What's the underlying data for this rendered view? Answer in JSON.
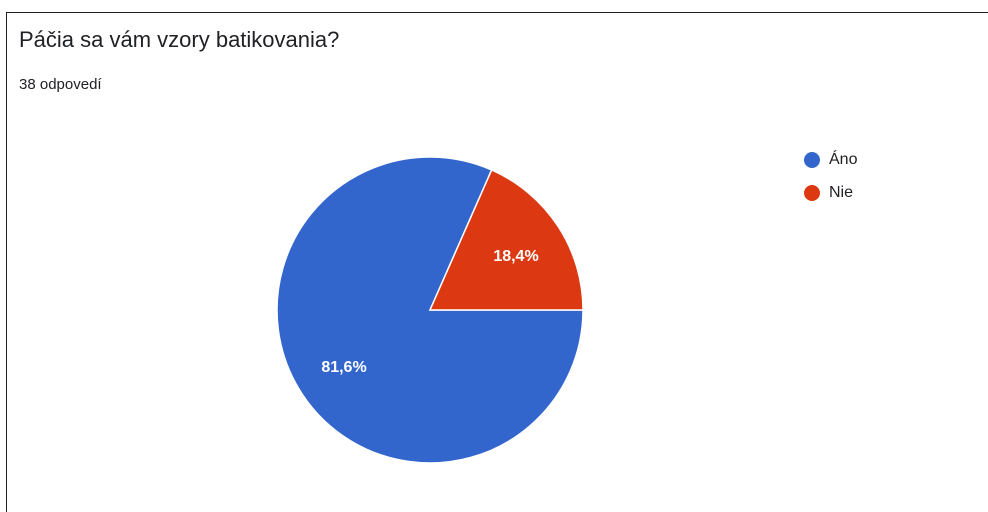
{
  "question": {
    "title": "Páčia sa vám vzory batikovania?",
    "responses": "38 odpovedí"
  },
  "chart_data": {
    "type": "pie",
    "title": "Páčia sa vám vzory batikovania?",
    "categories": [
      "Áno",
      "Nie"
    ],
    "values": [
      81.6,
      18.4
    ],
    "labels": [
      "81,6%",
      "18,4%"
    ],
    "colors": [
      "#3366cc",
      "#dc3912"
    ],
    "legend_position": "right"
  }
}
